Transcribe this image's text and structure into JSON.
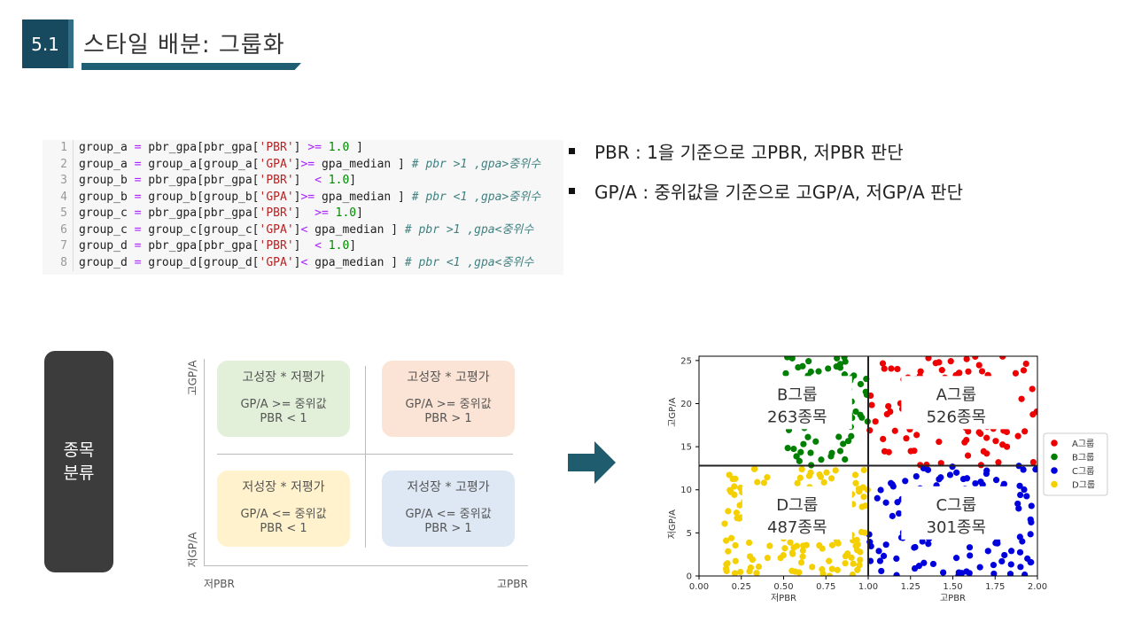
{
  "header": {
    "section_number": "5.1",
    "title": "스타일 배분: 그룹화"
  },
  "code": {
    "lines": [
      {
        "n": "1",
        "parts": [
          [
            "t",
            "group_a "
          ],
          [
            "op",
            "="
          ],
          [
            "t",
            " pbr_gpa[pbr_gpa["
          ],
          [
            "str",
            "'PBR'"
          ],
          [
            "t",
            "] "
          ],
          [
            "op",
            ">="
          ],
          [
            "t",
            " "
          ],
          [
            "num",
            "1.0"
          ],
          [
            "t",
            " ]"
          ]
        ]
      },
      {
        "n": "2",
        "parts": [
          [
            "t",
            "group_a "
          ],
          [
            "op",
            "="
          ],
          [
            "t",
            " group_a[group_a["
          ],
          [
            "str",
            "'GPA'"
          ],
          [
            "t",
            "]"
          ],
          [
            "op",
            ">="
          ],
          [
            "t",
            " gpa_median ] "
          ],
          [
            "cm",
            "# pbr >1 ,gpa>중위수"
          ]
        ]
      },
      {
        "n": "3",
        "parts": [
          [
            "t",
            "group_b "
          ],
          [
            "op",
            "="
          ],
          [
            "t",
            " pbr_gpa[pbr_gpa["
          ],
          [
            "str",
            "'PBR'"
          ],
          [
            "t",
            "]  "
          ],
          [
            "op",
            "<"
          ],
          [
            "t",
            " "
          ],
          [
            "num",
            "1.0"
          ],
          [
            "t",
            "]"
          ]
        ]
      },
      {
        "n": "4",
        "parts": [
          [
            "t",
            "group_b "
          ],
          [
            "op",
            "="
          ],
          [
            "t",
            " group_b[group_b["
          ],
          [
            "str",
            "'GPA'"
          ],
          [
            "t",
            "]"
          ],
          [
            "op",
            ">="
          ],
          [
            "t",
            " gpa_median ] "
          ],
          [
            "cm",
            "# pbr <1 ,gpa>중위수"
          ]
        ]
      },
      {
        "n": "5",
        "parts": [
          [
            "t",
            "group_c "
          ],
          [
            "op",
            "="
          ],
          [
            "t",
            " pbr_gpa[pbr_gpa["
          ],
          [
            "str",
            "'PBR'"
          ],
          [
            "t",
            "]  "
          ],
          [
            "op",
            ">="
          ],
          [
            "t",
            " "
          ],
          [
            "num",
            "1.0"
          ],
          [
            "t",
            "]"
          ]
        ]
      },
      {
        "n": "6",
        "parts": [
          [
            "t",
            "group_c "
          ],
          [
            "op",
            "="
          ],
          [
            "t",
            " group_c[group_c["
          ],
          [
            "str",
            "'GPA'"
          ],
          [
            "t",
            "]"
          ],
          [
            "op",
            "<"
          ],
          [
            "t",
            " gpa_median ] "
          ],
          [
            "cm",
            "# pbr >1 ,gpa<중위수"
          ]
        ]
      },
      {
        "n": "7",
        "parts": [
          [
            "t",
            "group_d "
          ],
          [
            "op",
            "="
          ],
          [
            "t",
            " pbr_gpa[pbr_gpa["
          ],
          [
            "str",
            "'PBR'"
          ],
          [
            "t",
            "]  "
          ],
          [
            "op",
            "<"
          ],
          [
            "t",
            " "
          ],
          [
            "num",
            "1.0"
          ],
          [
            "t",
            "]"
          ]
        ]
      },
      {
        "n": "8",
        "parts": [
          [
            "t",
            "group_d "
          ],
          [
            "op",
            "="
          ],
          [
            "t",
            " group_d[group_d["
          ],
          [
            "str",
            "'GPA'"
          ],
          [
            "t",
            "]"
          ],
          [
            "op",
            "<"
          ],
          [
            "t",
            " gpa_median ] "
          ],
          [
            "cm",
            "# pbr <1 ,gpa<중위수"
          ]
        ]
      }
    ]
  },
  "bullets": [
    "PBR : 1을 기준으로 고PBR, 저PBR 판단",
    "GP/A : 중위값을 기준으로 고GP/A, 저GP/A 판단"
  ],
  "category_box": {
    "line1": "종목",
    "line2": "분류"
  },
  "quadrant": {
    "y_high": "고GP/A",
    "y_low": "저GP/A",
    "x_low": "저PBR",
    "x_high": "고PBR",
    "cells": {
      "top_left": {
        "title": "고성장 * 저평가",
        "line1": "GP/A >= 중위값",
        "line2": "PBR < 1",
        "color": "#e2efd9"
      },
      "top_right": {
        "title": "고성장 * 고평가",
        "line1": "GP/A >= 중위값",
        "line2": "PBR > 1",
        "color": "#fbe4d5"
      },
      "bottom_left": {
        "title": "저성장 * 저평가",
        "line1": "GP/A <= 중위값",
        "line2": "PBR < 1",
        "color": "#fff2cc"
      },
      "bottom_right": {
        "title": "저성장 * 고평가",
        "line1": "GP/A <= 중위값",
        "line2": "PBR > 1",
        "color": "#dde8f4"
      }
    }
  },
  "arrow_color": "#1f5d6e",
  "chart_data": {
    "type": "scatter",
    "xlabel": "고PBR",
    "xlabel_left": "저PBR",
    "ylabel": "저GP/A",
    "ylabel_top": "고GP/A",
    "xlim": [
      0.0,
      2.0
    ],
    "ylim": [
      0,
      25.5
    ],
    "x_ticks": [
      "0.00",
      "0.25",
      "0.50",
      "0.75",
      "1.00",
      "1.25",
      "1.50",
      "1.75",
      "2.00"
    ],
    "y_ticks": [
      "0",
      "5",
      "10",
      "15",
      "20",
      "25"
    ],
    "x_split": 1.0,
    "y_split": 12.8,
    "legend_position": "right",
    "series": [
      {
        "name": "A그룹",
        "color": "#ee0000",
        "annotation": "A그룹",
        "annotation_count": "526종목",
        "x_range": [
          1.0,
          2.0
        ],
        "y_range": [
          12.8,
          25.5
        ],
        "count": 110
      },
      {
        "name": "B그룹",
        "color": "#008000",
        "annotation": "B그룹",
        "annotation_count": "263종목",
        "x_range": [
          0.5,
          1.0
        ],
        "y_range": [
          12.8,
          25.5
        ],
        "count": 70
      },
      {
        "name": "C그룹",
        "color": "#0000dd",
        "annotation": "C그룹",
        "annotation_count": "301종목",
        "x_range": [
          1.0,
          2.0
        ],
        "y_range": [
          0,
          12.8
        ],
        "count": 130
      },
      {
        "name": "D그룹",
        "color": "#f5d000",
        "annotation": "D그룹",
        "annotation_count": "487종목",
        "x_range": [
          0.15,
          1.0
        ],
        "y_range": [
          0,
          12.8
        ],
        "count": 170
      }
    ]
  }
}
